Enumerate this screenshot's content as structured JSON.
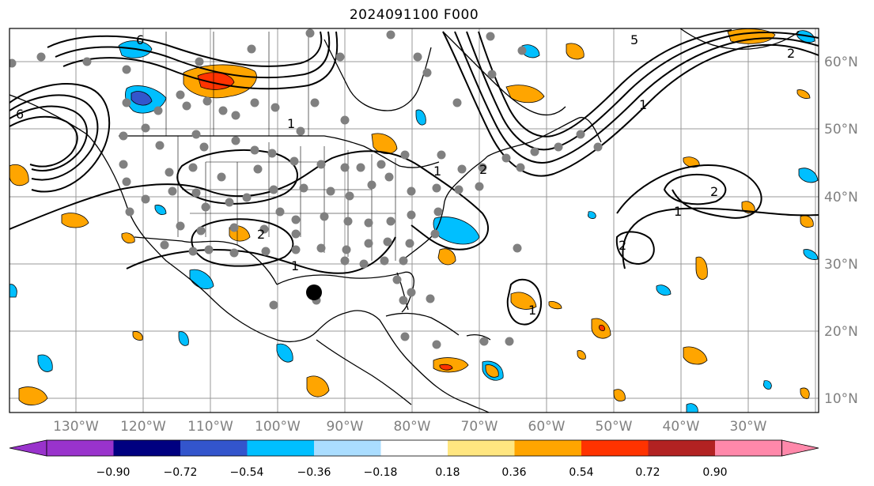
{
  "title": "2024091100 F000",
  "lat_labels": [
    "60°N",
    "50°N",
    "40°N",
    "30°N",
    "20°N",
    "10°N"
  ],
  "lon_labels": [
    "130°W",
    "120°W",
    "110°W",
    "100°W",
    "90°W",
    "80°W",
    "70°W",
    "60°W",
    "50°W",
    "40°W",
    "30°W"
  ],
  "colorbar": {
    "colors": [
      "#9933cc",
      "#000080",
      "#3355cc",
      "#00bfff",
      "#aaddff",
      "#ffffff",
      "#ffe680",
      "#ffa500",
      "#ff3300",
      "#b22222",
      "#ff88aa"
    ],
    "tick_labels": [
      "−0.90",
      "−0.72",
      "−0.54",
      "−0.36",
      "−0.18",
      "0.18",
      "0.36",
      "0.54",
      "0.72",
      "0.90"
    ]
  },
  "contour_labels": [
    "6",
    "6",
    "5",
    "1",
    "1",
    "2",
    "1",
    "2",
    "1",
    "2",
    "2",
    "1",
    "1",
    "2"
  ],
  "map": {
    "land_color": "#ffffff",
    "grid_color": "#999999",
    "storm_marker_color": "#000000",
    "station_color": "#808080"
  }
}
